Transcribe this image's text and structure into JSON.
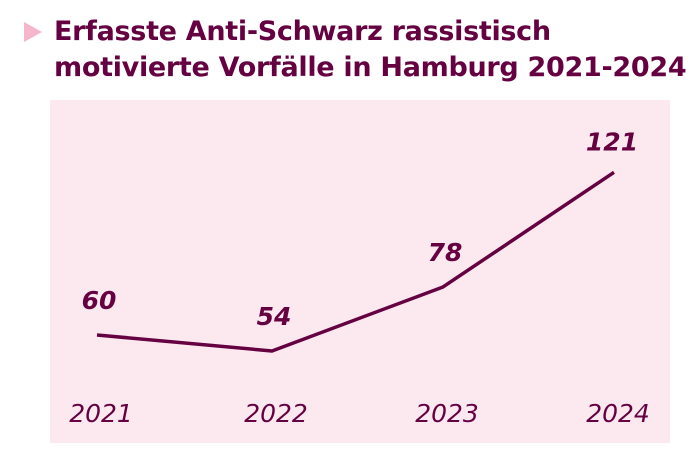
{
  "colors": {
    "accent": "#650041",
    "panel": "#fce9f0",
    "marker": "#f5b5cb"
  },
  "icon": "triangle-right-icon",
  "chart_data": {
    "type": "line",
    "title": "Erfasste Anti-Schwarz rassistisch motivierte Vorfälle in Hamburg 2021-2024",
    "categories": [
      "2021",
      "2022",
      "2023",
      "2024"
    ],
    "values": [
      60,
      54,
      78,
      121
    ],
    "value_labels": [
      "60",
      "54",
      "78",
      "121"
    ],
    "xlabel": "",
    "ylabel": "",
    "grid": false
  }
}
